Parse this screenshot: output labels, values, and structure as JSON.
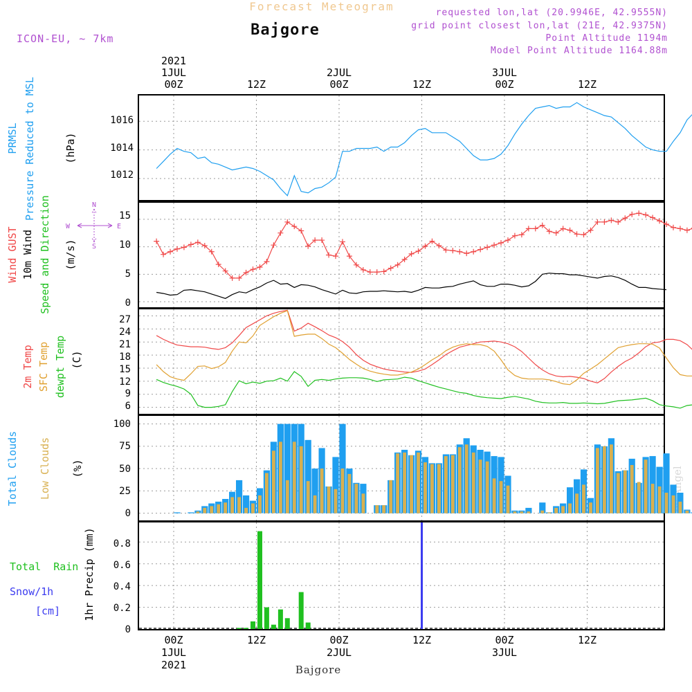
{
  "header": {
    "subtitle": "Forecast Meteogram",
    "title": "Bajgore",
    "model": "ICON-EU, ~ 7km",
    "info_lines": [
      "requested lon,lat (20.9946E, 42.9555N)",
      "grid point closest lon,lat (21E, 42.9375N)",
      "Point Altitude 1194m",
      "Model Point Altitude 1164.88m"
    ],
    "credit": "by Angel",
    "footer_label": "Bajgore"
  },
  "colors": {
    "pressure": "#1f9ff0",
    "gust": "#f04848",
    "wind": "#000000",
    "temp2m": "#f04848",
    "sfc": "#e0a030",
    "dewpt": "#20c020",
    "total_clouds": "#1f9ff0",
    "low_clouds": "#d8b050",
    "rain": "#20c020",
    "snow": "#3c3cf0",
    "purple_text": "#b050d0",
    "title_text": "#f0c890"
  },
  "time_axis": {
    "top": [
      {
        "h": 0,
        "lines": [
          "2021",
          "1JUL",
          "00Z"
        ]
      },
      {
        "h": 12,
        "lines": [
          "12Z"
        ]
      },
      {
        "h": 24,
        "lines": [
          "2JUL",
          "00Z"
        ]
      },
      {
        "h": 36,
        "lines": [
          "12Z"
        ]
      },
      {
        "h": 48,
        "lines": [
          "3JUL",
          "00Z"
        ]
      },
      {
        "h": 60,
        "lines": [
          "12Z"
        ]
      }
    ],
    "bottom": [
      {
        "h": 0,
        "lines": [
          "00Z",
          "1JUL",
          "2021"
        ]
      },
      {
        "h": 12,
        "lines": [
          "12Z"
        ]
      },
      {
        "h": 24,
        "lines": [
          "00Z",
          "2JUL"
        ]
      },
      {
        "h": 36,
        "lines": [
          "12Z"
        ]
      },
      {
        "h": 48,
        "lines": [
          "00Z",
          "3JUL"
        ]
      },
      {
        "h": 60,
        "lines": [
          "12Z"
        ]
      }
    ]
  },
  "panels": {
    "pressure": {
      "labels": [
        "PRMSL",
        "Pressure Reduced to MSL"
      ],
      "unit": "(hPa)",
      "ticks": [
        "1012",
        "1014",
        "1016"
      ]
    },
    "wind": {
      "labels": [
        "Wind GUST",
        "10m Wind",
        "Speed and Direction"
      ],
      "unit": "(m/s)",
      "ticks": [
        "0",
        "5",
        "10",
        "15"
      ],
      "compass": {
        "n": "N",
        "w": "W",
        "e": "E",
        "s": "S"
      }
    },
    "temp": {
      "labels": [
        "2m Temp",
        "SFC Temp",
        "dewpt Temp"
      ],
      "unit": "(C)",
      "ticks": [
        "6",
        "9",
        "12",
        "15",
        "18",
        "21",
        "24",
        "27"
      ]
    },
    "clouds": {
      "labels": [
        "Total Clouds",
        "Low Clouds"
      ],
      "unit": "(%)",
      "ticks": [
        "0",
        "25",
        "50",
        "75",
        "100"
      ]
    },
    "precip": {
      "labels": [
        "Total  Rain",
        "Snow/1h",
        "[cm]"
      ],
      "axis_title": "1hr Precip (mm)",
      "ticks": [
        "0",
        "0.2",
        "0.4",
        "0.6",
        "0.8"
      ]
    }
  },
  "chart_data": [
    {
      "type": "line",
      "name": "pressure",
      "ylabel": "(hPa)",
      "ylim": [
        1010.5,
        1017.8
      ],
      "x_start": -2.5,
      "x_step": 1,
      "series": [
        {
          "name": "PRMSL",
          "values": [
            1012.7,
            1013.2,
            1013.7,
            1014.1,
            1013.9,
            1013.8,
            1013.4,
            1013.5,
            1013.1,
            1013.0,
            1012.8,
            1012.6,
            1012.7,
            1012.8,
            1012.7,
            1012.5,
            1012.2,
            1011.9,
            1011.3,
            1010.8,
            1012.2,
            1011.1,
            1011.0,
            1011.3,
            1011.4,
            1011.7,
            1012.1,
            1013.9,
            1013.9,
            1014.1,
            1014.1,
            1014.1,
            1014.2,
            1013.9,
            1014.2,
            1014.2,
            1014.5,
            1015.0,
            1015.4,
            1015.5,
            1015.2,
            1015.2,
            1015.2,
            1014.9,
            1014.6,
            1014.1,
            1013.6,
            1013.3,
            1013.3,
            1013.4,
            1013.7,
            1014.3,
            1015.1,
            1015.8,
            1016.4,
            1016.9,
            1017.0,
            1017.1,
            1016.9,
            1017.0,
            1017.0,
            1017.3,
            1017.0,
            1016.8,
            1016.6,
            1016.4,
            1016.3,
            1015.9,
            1015.5,
            1015.0,
            1014.6,
            1014.2,
            1014.0,
            1013.9,
            1013.9,
            1014.6,
            1015.2,
            1016.1,
            1016.6,
            1016.6,
            1016.7,
            1016.7,
            1016.6
          ]
        }
      ]
    },
    {
      "type": "line",
      "name": "wind",
      "ylabel": "(m/s)",
      "ylim": [
        -1,
        18
      ],
      "x_start": -2.5,
      "x_step": 1,
      "series": [
        {
          "name": "Wind GUST",
          "values": [
            11.0,
            8.6,
            9.1,
            9.6,
            9.9,
            10.4,
            10.8,
            10.2,
            9.1,
            6.8,
            5.6,
            4.3,
            4.3,
            5.3,
            5.9,
            6.3,
            7.3,
            10.3,
            12.5,
            14.5,
            13.7,
            12.9,
            10.1,
            11.2,
            11.2,
            8.5,
            8.3,
            10.9,
            8.3,
            6.7,
            5.8,
            5.4,
            5.4,
            5.5,
            6.1,
            6.7,
            7.7,
            8.7,
            9.2,
            10.1,
            11.0,
            10.2,
            9.4,
            9.3,
            9.1,
            8.8,
            9.1,
            9.5,
            9.9,
            10.3,
            10.7,
            11.2,
            12.0,
            12.2,
            13.3,
            13.3,
            13.9,
            12.8,
            12.5,
            13.3,
            13.0,
            12.3,
            12.2,
            13.0,
            14.5,
            14.5,
            14.8,
            14.5,
            15.2,
            15.9,
            16.1,
            15.8,
            15.3,
            14.7,
            14.1,
            13.5,
            13.3,
            13.0,
            13.4,
            12.7,
            12.3,
            12.0,
            11.7,
            11.4,
            10.9
          ]
        },
        {
          "name": "10m Wind",
          "values": [
            1.7,
            1.5,
            1.2,
            1.3,
            2.1,
            2.2,
            2.0,
            1.8,
            1.4,
            1.0,
            0.6,
            1.3,
            1.8,
            1.6,
            2.2,
            2.7,
            3.4,
            3.9,
            3.2,
            3.3,
            2.6,
            3.1,
            3.0,
            2.7,
            2.2,
            1.8,
            1.4,
            2.1,
            1.6,
            1.5,
            1.8,
            1.9,
            1.9,
            2.0,
            1.9,
            1.8,
            1.9,
            1.7,
            2.1,
            2.6,
            2.5,
            2.5,
            2.7,
            2.8,
            3.2,
            3.5,
            3.8,
            3.1,
            2.8,
            2.8,
            3.2,
            3.2,
            3.0,
            2.7,
            2.9,
            3.7,
            5.0,
            5.2,
            5.1,
            5.1,
            4.9,
            4.9,
            4.7,
            4.5,
            4.3,
            4.6,
            4.7,
            4.4,
            3.9,
            3.2,
            2.6,
            2.6,
            2.4,
            2.3,
            2.2
          ]
        }
      ]
    },
    {
      "type": "line",
      "name": "temperature",
      "ylabel": "(C)",
      "ylim": [
        4.5,
        28.5
      ],
      "x_start": -2.5,
      "x_step": 1,
      "series": [
        {
          "name": "2m Temp",
          "values": [
            22.5,
            21.6,
            20.9,
            20.3,
            20.1,
            19.9,
            19.9,
            19.8,
            19.5,
            19.3,
            19.7,
            20.8,
            22.5,
            24.3,
            25.2,
            26.1,
            27.0,
            27.6,
            28.0,
            28.3,
            23.5,
            24.2,
            25.3,
            24.5,
            23.6,
            22.6,
            22.0,
            21.1,
            19.8,
            18.1,
            16.8,
            15.9,
            15.3,
            14.8,
            14.5,
            14.3,
            14.1,
            14.0,
            14.3,
            14.8,
            15.8,
            16.9,
            18.1,
            19.0,
            19.8,
            20.2,
            20.6,
            21.0,
            21.1,
            21.2,
            21.0,
            20.6,
            19.9,
            18.8,
            17.3,
            15.8,
            14.6,
            13.7,
            13.2,
            13.0,
            13.1,
            12.9,
            12.6,
            12.0,
            11.6,
            12.6,
            14.1,
            15.4,
            16.5,
            17.3,
            18.5,
            19.9,
            20.8,
            21.0,
            21.6,
            21.6,
            21.3,
            20.4,
            18.9,
            17.2,
            15.6,
            14.5,
            13.6,
            13.0,
            12.8
          ]
        },
        {
          "name": "SFC Temp",
          "values": [
            15.8,
            14.2,
            13.0,
            12.5,
            12.2,
            13.7,
            15.4,
            15.5,
            14.9,
            15.3,
            16.3,
            18.9,
            21.0,
            20.8,
            22.4,
            24.8,
            25.8,
            26.8,
            27.6,
            28.2,
            22.3,
            22.6,
            22.8,
            22.8,
            21.8,
            20.5,
            19.7,
            18.4,
            17.0,
            15.9,
            14.9,
            14.3,
            13.9,
            13.6,
            13.4,
            13.4,
            13.7,
            14.1,
            14.8,
            15.8,
            16.9,
            17.8,
            19.0,
            19.8,
            20.3,
            20.6,
            20.4,
            20.4,
            20.0,
            18.9,
            16.9,
            14.6,
            13.3,
            12.7,
            12.5,
            12.5,
            12.5,
            12.3,
            11.9,
            11.4,
            11.2,
            12.3,
            13.8,
            14.8,
            15.8,
            17.1,
            18.4,
            19.7,
            20.1,
            20.4,
            20.6,
            20.6,
            20.5,
            19.6,
            17.3,
            15.1,
            13.5,
            13.2,
            13.2,
            12.8,
            12.4,
            12.0
          ]
        },
        {
          "name": "dewpt Temp",
          "values": [
            12.4,
            11.7,
            11.2,
            10.8,
            10.2,
            9.0,
            6.4,
            6.0,
            6.0,
            6.2,
            6.6,
            9.6,
            12.1,
            11.4,
            11.8,
            11.5,
            12.0,
            12.1,
            12.7,
            12.0,
            14.2,
            13.1,
            10.8,
            12.2,
            12.4,
            12.2,
            12.5,
            12.7,
            12.8,
            12.8,
            12.7,
            12.4,
            11.9,
            12.3,
            12.4,
            12.5,
            12.9,
            12.7,
            12.1,
            11.6,
            11.1,
            10.6,
            10.2,
            9.8,
            9.4,
            9.2,
            8.7,
            8.4,
            8.2,
            8.1,
            8.0,
            8.3,
            8.5,
            8.2,
            7.9,
            7.4,
            7.1,
            7.0,
            7.0,
            7.1,
            6.9,
            6.9,
            7.0,
            6.9,
            6.8,
            6.9,
            7.2,
            7.5,
            7.6,
            7.7,
            7.9,
            8.1,
            7.5,
            6.6,
            6.3,
            6.1,
            5.8,
            6.4,
            6.6,
            6.7,
            6.6,
            6.4,
            6.2,
            6.0,
            5.9,
            5.8
          ]
        }
      ]
    },
    {
      "type": "bar",
      "name": "clouds",
      "ylabel": "(%)",
      "ylim": [
        -8,
        109
      ],
      "x_start": -2.5,
      "x_step": 1,
      "series": [
        {
          "name": "Total Clouds",
          "values": [
            0,
            0,
            0,
            1,
            0,
            1,
            3,
            8,
            11,
            13,
            16,
            24,
            37,
            20,
            14,
            28,
            48,
            80,
            100,
            100,
            100,
            100,
            82,
            50,
            73,
            30,
            63,
            100,
            50,
            34,
            33,
            0,
            9,
            9,
            37,
            68,
            71,
            65,
            70,
            63,
            56,
            56,
            66,
            66,
            77,
            84,
            76,
            71,
            69,
            64,
            63,
            42,
            3,
            3,
            6,
            0,
            12,
            1,
            8,
            11,
            29,
            38,
            49,
            17,
            77,
            75,
            84,
            47,
            48,
            61,
            34,
            63,
            64,
            52,
            67,
            32,
            23,
            4,
            1,
            1,
            1,
            1,
            1,
            1
          ]
        },
        {
          "name": "Low Clouds",
          "values": [
            0,
            0,
            0,
            0,
            0,
            0,
            2,
            6,
            8,
            10,
            12,
            18,
            18,
            6,
            11,
            20,
            45,
            70,
            80,
            37,
            80,
            75,
            36,
            20,
            50,
            30,
            27,
            50,
            44,
            33,
            22,
            0,
            9,
            9,
            37,
            67,
            68,
            65,
            68,
            57,
            55,
            55,
            64,
            65,
            74,
            77,
            68,
            60,
            58,
            39,
            36,
            31,
            2,
            2,
            2,
            0,
            3,
            1,
            6,
            8,
            11,
            22,
            32,
            12,
            73,
            75,
            77,
            45,
            48,
            54,
            35,
            60,
            33,
            30,
            23,
            20,
            13,
            3,
            0,
            0,
            0,
            0,
            0,
            0
          ]
        }
      ]
    },
    {
      "type": "bar",
      "name": "precipitation",
      "ylabel": "1hr Precip (mm)",
      "ylim": [
        0,
        0.98
      ],
      "series": [
        {
          "name": "Total Rain",
          "x": [
            9.5,
            10.5,
            11.5,
            12.5,
            13.5,
            14.5,
            15.5,
            16.5,
            18.5,
            19.5
          ],
          "values": [
            0.01,
            0.01,
            0.07,
            0.9,
            0.2,
            0.04,
            0.18,
            0.1,
            0.34,
            0.06
          ]
        },
        {
          "name": "Snow/1h",
          "x": [
            36
          ],
          "values": [
            0
          ]
        }
      ]
    }
  ]
}
